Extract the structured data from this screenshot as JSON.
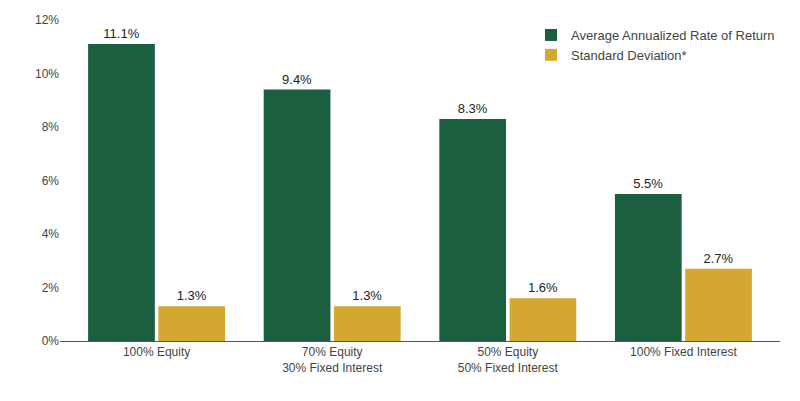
{
  "chart_data": {
    "type": "bar",
    "categories": [
      "100% Equity",
      "70% Equity\n30% Fixed Interest",
      "50% Equity\n50% Fixed Interest",
      "100% Fixed Interest"
    ],
    "series": [
      {
        "name": "Average Annualized Rate of Return",
        "color": "#1b5e40",
        "values": [
          11.1,
          9.4,
          8.3,
          5.5
        ],
        "value_labels": [
          "11.1%",
          "9.4%",
          "8.3%",
          "5.5%"
        ]
      },
      {
        "name": "Standard Deviation*",
        "color": "#d4a830",
        "values": [
          1.3,
          1.3,
          1.6,
          2.7
        ],
        "value_labels": [
          "1.3%",
          "1.3%",
          "1.6%",
          "2.7%"
        ]
      }
    ],
    "ylim": [
      0,
      12
    ],
    "yticks": [
      {
        "value": 0,
        "label": "0%"
      },
      {
        "value": 2,
        "label": "2%"
      },
      {
        "value": 4,
        "label": "4%"
      },
      {
        "value": 6,
        "label": "6%"
      },
      {
        "value": 8,
        "label": "8%"
      },
      {
        "value": 10,
        "label": "10%"
      },
      {
        "value": 12,
        "label": "12%"
      }
    ],
    "grid": false,
    "legend": "upper right",
    "data_labels": true
  }
}
